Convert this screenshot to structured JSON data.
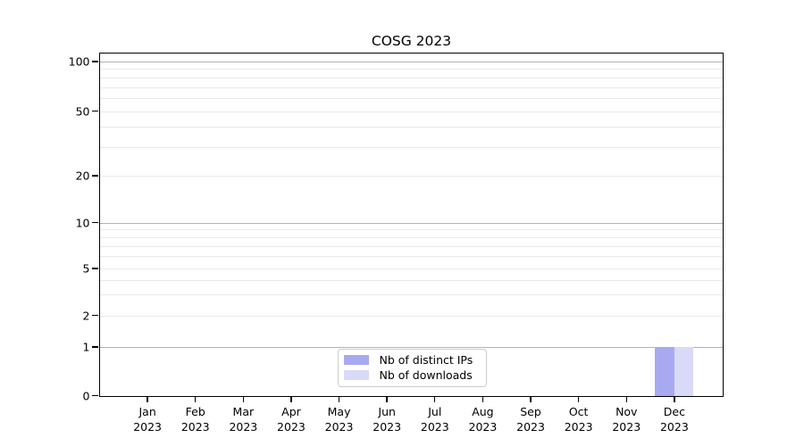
{
  "chart_data": {
    "type": "bar",
    "title": "COSG 2023",
    "categories": [
      "Jan",
      "Feb",
      "Mar",
      "Apr",
      "May",
      "Jun",
      "Jul",
      "Aug",
      "Sep",
      "Oct",
      "Nov",
      "Dec"
    ],
    "x_tick_year": "2023",
    "series": [
      {
        "name": "Nb of distinct IPs",
        "color": "#a9a9f1",
        "values": [
          0,
          0,
          0,
          0,
          0,
          0,
          0,
          0,
          0,
          0,
          0,
          1
        ]
      },
      {
        "name": "Nb of downloads",
        "color": "#d9d9f8",
        "values": [
          0,
          0,
          0,
          0,
          0,
          0,
          0,
          0,
          0,
          0,
          0,
          1
        ]
      }
    ],
    "y_axis": {
      "scale": "symlog",
      "range": [
        0,
        100
      ],
      "tick_labels": [
        0,
        1,
        2,
        5,
        10,
        20,
        50,
        100
      ],
      "major_gridlines": [
        1,
        10,
        100
      ],
      "minor_gridlines": [
        2,
        3,
        4,
        5,
        6,
        7,
        8,
        9,
        20,
        30,
        40,
        50,
        60,
        70,
        80,
        90
      ]
    },
    "legend": {
      "position": "lower center"
    },
    "grid": true,
    "colors": {
      "axis": "#000000",
      "major_grid": "#b2b2b2",
      "minor_grid": "#e9e9e9",
      "background": "#ffffff"
    }
  }
}
